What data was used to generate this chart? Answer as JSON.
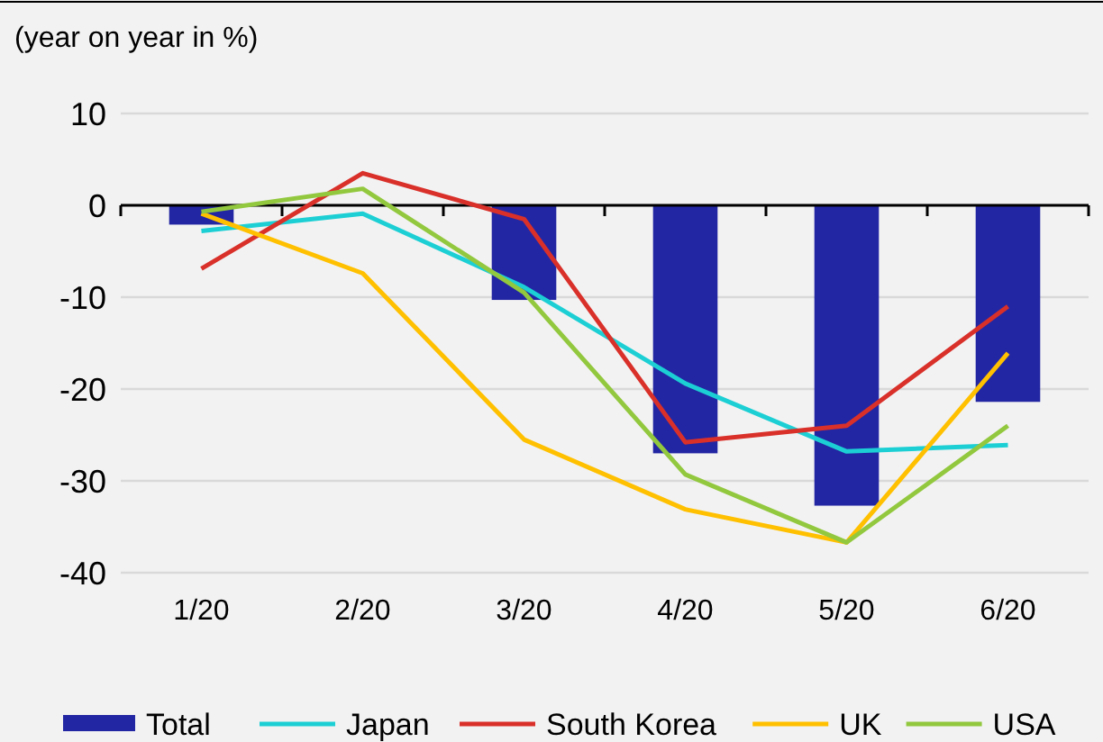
{
  "chart_data": {
    "type": "bar",
    "title": "(year on year in %)",
    "categories": [
      "1/20",
      "2/20",
      "3/20",
      "4/20",
      "5/20",
      "6/20"
    ],
    "series": [
      {
        "name": "Total",
        "color": "#2326a3",
        "values": [
          -2.1,
          0,
          -10.3,
          -27,
          -32.7,
          -21.4
        ]
      },
      {
        "name": "Japan",
        "type": "line",
        "color": "#1ccfd4",
        "values": [
          -2.8,
          -0.9,
          -8.9,
          -19.4,
          -26.8,
          -26.1
        ]
      },
      {
        "name": "South Korea",
        "type": "line",
        "color": "#d9302a",
        "values": [
          -6.9,
          3.5,
          -1.5,
          -25.8,
          -24,
          -11
        ]
      },
      {
        "name": "UK",
        "type": "line",
        "color": "#ffc000",
        "values": [
          -0.9,
          -7.4,
          -25.5,
          -33.1,
          -36.7,
          -16.1
        ]
      },
      {
        "name": "USA",
        "type": "line",
        "color": "#92c83e",
        "values": [
          -0.7,
          1.8,
          -9.5,
          -29.3,
          -36.7,
          -24
        ]
      }
    ],
    "ylim": [
      -40,
      10
    ],
    "yticks": [
      -40,
      -30,
      -20,
      -10,
      0,
      10
    ],
    "grid": "y",
    "legend": "bottom",
    "line_style": "solid"
  }
}
